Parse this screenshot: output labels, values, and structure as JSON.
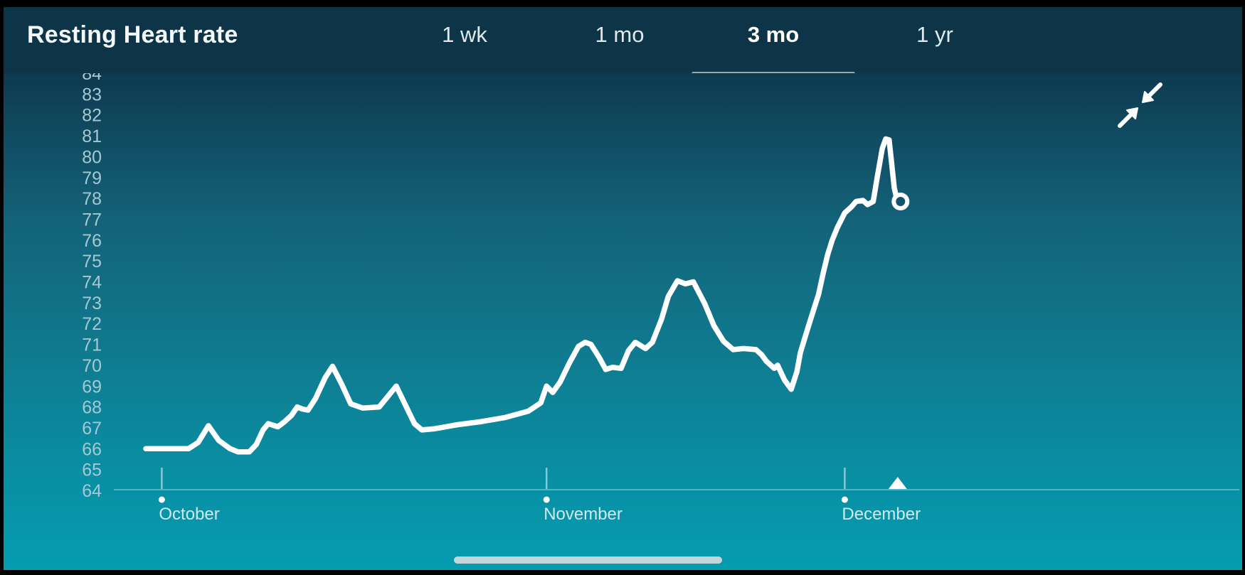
{
  "header": {
    "title": "Resting Heart rate",
    "tabs": [
      {
        "label": "1 wk",
        "active": false
      },
      {
        "label": "1 mo",
        "active": false
      },
      {
        "label": "3 mo",
        "active": true
      },
      {
        "label": "1 yr",
        "active": false
      }
    ]
  },
  "colors": {
    "header_bg": "#0d3447",
    "chart_gradient_top": "#0e3a50",
    "chart_gradient_bottom": "#059cb1",
    "line": "#ffffff",
    "active_tab_indicator": "#93a9b4",
    "y_label": "#a6c8d3",
    "month_label": "#cfe9ef",
    "home_indicator": "#d5dbde"
  },
  "icons": {
    "collapse": "collapse-arrows-icon"
  },
  "chart_data": {
    "type": "line",
    "title": "Resting Heart rate",
    "series_name": "Resting heart rate (bpm)",
    "selected_range": "3 mo",
    "ylabel": "",
    "xlabel": "",
    "ylim": [
      64,
      84.5
    ],
    "y_tick_labels": [
      84,
      83,
      82,
      81,
      80,
      79,
      78,
      77,
      76,
      75,
      74,
      73,
      72,
      71,
      70,
      69,
      68,
      67,
      66,
      65,
      64
    ],
    "x_unit": "days from series start (late September to early December)",
    "x_month_ticks": [
      {
        "label": "October",
        "day": 1.4
      },
      {
        "label": "November",
        "day": 35.2
      },
      {
        "label": "December",
        "day": 61.4
      }
    ],
    "today_marker_day": 66.05,
    "grid": false,
    "legend": "none",
    "points": [
      [
        0,
        66
      ],
      [
        3.75,
        66
      ],
      [
        4.6,
        66.3
      ],
      [
        5.5,
        67.1
      ],
      [
        6.4,
        66.4
      ],
      [
        7.4,
        66
      ],
      [
        8.1,
        65.85
      ],
      [
        9.1,
        65.85
      ],
      [
        9.7,
        66.2
      ],
      [
        10.3,
        66.9
      ],
      [
        10.75,
        67.2
      ],
      [
        11.6,
        67.05
      ],
      [
        12.2,
        67.3
      ],
      [
        12.8,
        67.6
      ],
      [
        13.3,
        68
      ],
      [
        13.75,
        67.9
      ],
      [
        14.25,
        67.85
      ],
      [
        14.9,
        68.4
      ],
      [
        15.75,
        69.4
      ],
      [
        16.4,
        69.95
      ],
      [
        17.2,
        69.1
      ],
      [
        18,
        68.15
      ],
      [
        19.05,
        67.95
      ],
      [
        20.5,
        68
      ],
      [
        21.4,
        68.6
      ],
      [
        22,
        69
      ],
      [
        22.8,
        68.1
      ],
      [
        23.6,
        67.2
      ],
      [
        24.25,
        66.9
      ],
      [
        25.3,
        66.95
      ],
      [
        27.4,
        67.15
      ],
      [
        29.5,
        67.3
      ],
      [
        31.6,
        67.5
      ],
      [
        33.6,
        67.8
      ],
      [
        34.7,
        68.2
      ],
      [
        35.2,
        69
      ],
      [
        35.75,
        68.7
      ],
      [
        36.4,
        69.2
      ],
      [
        37.2,
        70.1
      ],
      [
        38,
        70.9
      ],
      [
        38.6,
        71.1
      ],
      [
        39.1,
        71
      ],
      [
        39.8,
        70.4
      ],
      [
        40.4,
        69.8
      ],
      [
        41,
        69.9
      ],
      [
        41.75,
        69.85
      ],
      [
        42.4,
        70.7
      ],
      [
        43,
        71.1
      ],
      [
        43.9,
        70.8
      ],
      [
        44.5,
        71.1
      ],
      [
        45.3,
        72.2
      ],
      [
        45.9,
        73.3
      ],
      [
        46.7,
        74.05
      ],
      [
        47.4,
        73.9
      ],
      [
        48.1,
        74
      ],
      [
        49.1,
        72.95
      ],
      [
        49.9,
        71.9
      ],
      [
        50.75,
        71.15
      ],
      [
        51.6,
        70.75
      ],
      [
        52.5,
        70.8
      ],
      [
        53.6,
        70.75
      ],
      [
        54.1,
        70.5
      ],
      [
        54.5,
        70.2
      ],
      [
        55.2,
        69.85
      ],
      [
        55.5,
        70
      ],
      [
        56.1,
        69.3
      ],
      [
        56.7,
        68.85
      ],
      [
        57.2,
        69.7
      ],
      [
        57.5,
        70.6
      ],
      [
        58,
        71.5
      ],
      [
        58.4,
        72.2
      ],
      [
        59.1,
        73.4
      ],
      [
        59.5,
        74.4
      ],
      [
        59.9,
        75.3
      ],
      [
        60.3,
        76
      ],
      [
        60.75,
        76.6
      ],
      [
        61.4,
        77.3
      ],
      [
        62,
        77.6
      ],
      [
        62.4,
        77.85
      ],
      [
        63,
        77.9
      ],
      [
        63.4,
        77.7
      ],
      [
        63.9,
        77.85
      ],
      [
        64.25,
        79
      ],
      [
        64.7,
        80.4
      ],
      [
        65,
        80.85
      ],
      [
        65.3,
        80.8
      ],
      [
        65.75,
        78.5
      ],
      [
        66,
        77.9
      ]
    ],
    "end_marker": {
      "day": 66.3,
      "value": 77.85,
      "style": "open-circle"
    }
  }
}
